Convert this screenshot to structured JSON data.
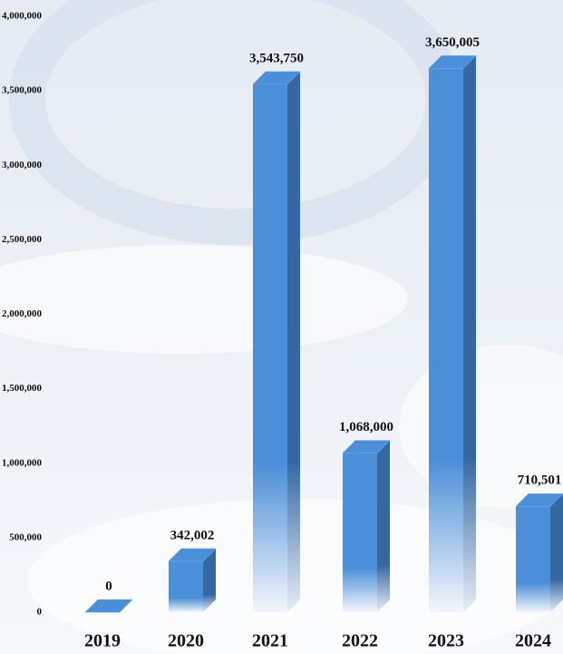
{
  "chart_data": {
    "type": "bar3d",
    "categories": [
      "2019",
      "2020",
      "2021",
      "2022",
      "2023",
      "2024"
    ],
    "values": [
      0,
      342002,
      3543750,
      1068000,
      3650005,
      710501
    ],
    "value_labels": [
      "0",
      "342,002",
      "3,543,750",
      "1,068,000",
      "3,650,005",
      "710,501"
    ],
    "color": "#4a8fd8",
    "ylim": [
      0,
      4000000
    ],
    "yticks": [
      {
        "value": 0,
        "label": "0"
      },
      {
        "value": 500000,
        "label": "500,000"
      },
      {
        "value": 1000000,
        "label": "1,000,000"
      },
      {
        "value": 1500000,
        "label": "1,500,000"
      },
      {
        "value": 2000000,
        "label": "2,000,000"
      },
      {
        "value": 2500000,
        "label": "2,500,000"
      },
      {
        "value": 3000000,
        "label": "3,000,000"
      },
      {
        "value": 3500000,
        "label": "3,500,000"
      },
      {
        "value": 4000000,
        "label": "4,000,000"
      }
    ],
    "grid": false
  }
}
